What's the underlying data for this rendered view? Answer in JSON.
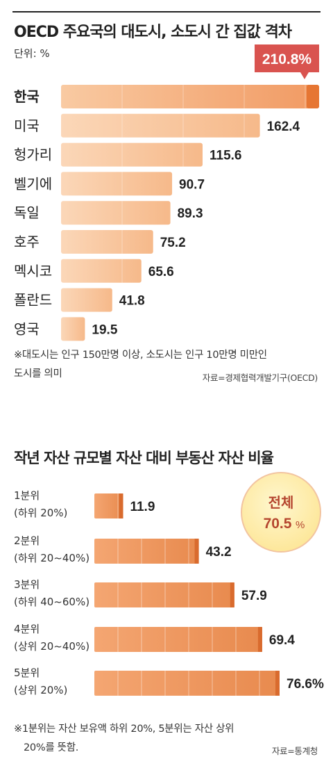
{
  "chart1": {
    "title": "OECD 주요국의 대도시, 소도시 간 집값 격차",
    "unit": "단위: %",
    "highlight_label": "210.8%",
    "note_lines": [
      "※대도시는 인구 150만명 이상, 소도시는 인구 10만명 미만인",
      "도시를 의미"
    ],
    "source": "자료=경제협력개발기구(OECD)"
  },
  "chart2": {
    "title": "작년 자산 규모별 자산 대비 부동산 자산 비율",
    "total_label": "전체",
    "total_value": "70.5",
    "total_unit": "%",
    "note_lines": [
      "※1분위는 자산 보유액 하위 20%, 5분위는 자산 상위",
      "20%를 뜻함."
    ],
    "source": "자료=통계청"
  },
  "colors": {
    "bar_light": "#f8c49a",
    "bar_dark": "#ec8e4e",
    "bar_accent": "#e67633",
    "callout": "#d9534f"
  },
  "chart_data": [
    {
      "type": "bar",
      "orientation": "horizontal",
      "title": "OECD 주요국의 대도시, 소도시 간 집값 격차",
      "unit": "%",
      "categories": [
        "한국",
        "미국",
        "헝가리",
        "벨기에",
        "독일",
        "호주",
        "멕시코",
        "폴란드",
        "영국"
      ],
      "values": [
        210.8,
        162.4,
        115.6,
        90.7,
        89.3,
        75.2,
        65.6,
        41.8,
        19.5
      ],
      "value_labels": [
        "210.8%",
        "162.4",
        "115.6",
        "90.7",
        "89.3",
        "75.2",
        "65.6",
        "41.8",
        "19.5"
      ]
    },
    {
      "type": "bar",
      "orientation": "horizontal",
      "title": "작년 자산 규모별 자산 대비 부동산 자산 비율",
      "unit": "%",
      "categories": [
        [
          "1분위",
          "(하위 20%)"
        ],
        [
          "2분위",
          "(하위 20~40%)"
        ],
        [
          "3분위",
          "(하위 40~60%)"
        ],
        [
          "4분위",
          "(상위 20~40%)"
        ],
        [
          "5분위",
          "(상위 20%)"
        ]
      ],
      "values": [
        11.9,
        43.2,
        57.9,
        69.4,
        76.6
      ],
      "value_labels": [
        "11.9",
        "43.2",
        "57.9",
        "69.4",
        "76.6%"
      ]
    }
  ]
}
